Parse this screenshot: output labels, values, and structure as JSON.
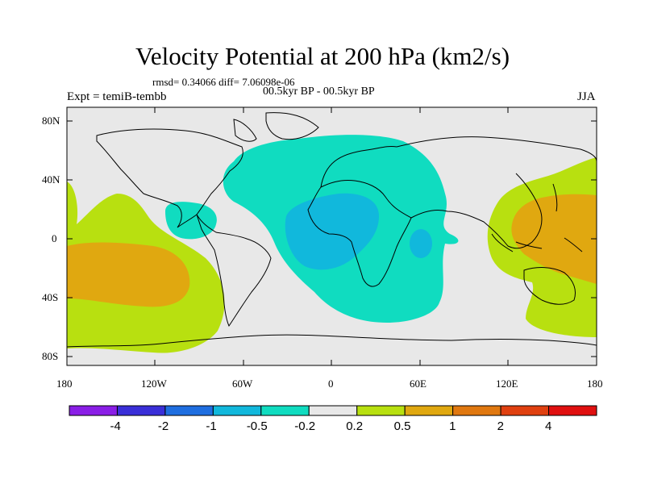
{
  "title": "Velocity Potential at 200 hPa (km2/s)",
  "stats_line": "rmsd= 0.34066 diff= 7.06098e-06",
  "left_label": "Expt = temiB-tembb",
  "center_label": "00.5kyr BP - 00.5kyr BP",
  "right_label": "JJA",
  "lat_labels": [
    "80N",
    "40N",
    "0",
    "40S",
    "80S"
  ],
  "lon_labels": [
    "180",
    "120W",
    "60W",
    "0",
    "60E",
    "120E",
    "180"
  ],
  "colorbar": {
    "labels": [
      "-4",
      "-2",
      "-1",
      "-0.5",
      "-0.2",
      "0.2",
      "0.5",
      "1",
      "2",
      "4"
    ],
    "colors": [
      "#8a1ee6",
      "#3a2fd8",
      "#1f6ee0",
      "#11b8dc",
      "#10dcc0",
      "#e8e8e8",
      "#b8e010",
      "#e0a810",
      "#e07810",
      "#e04010",
      "#e01010"
    ]
  },
  "colors": {
    "background": "#e8e8e8",
    "neg_02": "#10dcc0",
    "neg_05": "#11b8dc",
    "pos_02": "#b8e010",
    "pos_05": "#e0a810"
  }
}
